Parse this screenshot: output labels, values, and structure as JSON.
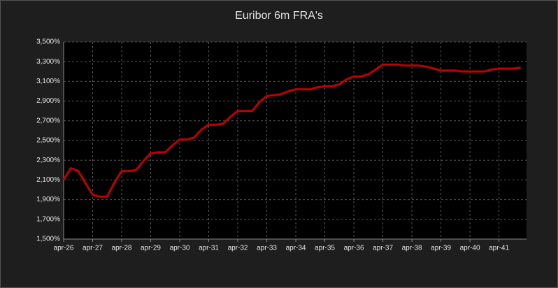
{
  "chart_data": {
    "type": "line",
    "title": "Euribor 6m FRA's",
    "categories": [
      "apr-26",
      null,
      null,
      null,
      "apr-27",
      null,
      null,
      null,
      "apr-28",
      null,
      null,
      null,
      "apr-29",
      null,
      null,
      null,
      "apr-30",
      null,
      null,
      null,
      "apr-31",
      null,
      null,
      null,
      "apr-32",
      null,
      null,
      null,
      "apr-33",
      null,
      null,
      null,
      "apr-34",
      null,
      null,
      null,
      "apr-35",
      null,
      null,
      null,
      "apr-36",
      null,
      null,
      null,
      "apr-37",
      null,
      null,
      null,
      "apr-38",
      null,
      null,
      null,
      "apr-39",
      null,
      null,
      null,
      "apr-40",
      null,
      null,
      null,
      "apr-41",
      null,
      null,
      null
    ],
    "values": [
      2.1,
      2.22,
      2.19,
      2.07,
      1.95,
      1.93,
      1.93,
      2.07,
      2.19,
      2.19,
      2.2,
      2.29,
      2.37,
      2.38,
      2.38,
      2.45,
      2.51,
      2.51,
      2.53,
      2.61,
      2.66,
      2.66,
      2.67,
      2.74,
      2.8,
      2.8,
      2.8,
      2.89,
      2.95,
      2.96,
      2.97,
      3.0,
      3.02,
      3.02,
      3.02,
      3.04,
      3.05,
      3.05,
      3.07,
      3.12,
      3.15,
      3.15,
      3.17,
      3.22,
      3.27,
      3.27,
      3.27,
      3.26,
      3.26,
      3.26,
      3.25,
      3.23,
      3.21,
      3.21,
      3.21,
      3.2,
      3.2,
      3.2,
      3.2,
      3.22,
      3.23,
      3.23,
      3.23,
      3.24
    ],
    "color": "#c00000",
    "ylim": [
      1.5,
      3.5
    ],
    "yticks": [
      {
        "value": 1.5,
        "label": "1,500%"
      },
      {
        "value": 1.7,
        "label": "1,700%"
      },
      {
        "value": 1.9,
        "label": "1,900%"
      },
      {
        "value": 2.1,
        "label": "2,100%"
      },
      {
        "value": 2.3,
        "label": "2,300%"
      },
      {
        "value": 2.5,
        "label": "2,500%"
      },
      {
        "value": 2.7,
        "label": "2,700%"
      },
      {
        "value": 2.9,
        "label": "2,900%"
      },
      {
        "value": 3.1,
        "label": "3,100%"
      },
      {
        "value": 3.3,
        "label": "3,300%"
      },
      {
        "value": 3.5,
        "label": "3,500%"
      }
    ],
    "grid": true
  }
}
